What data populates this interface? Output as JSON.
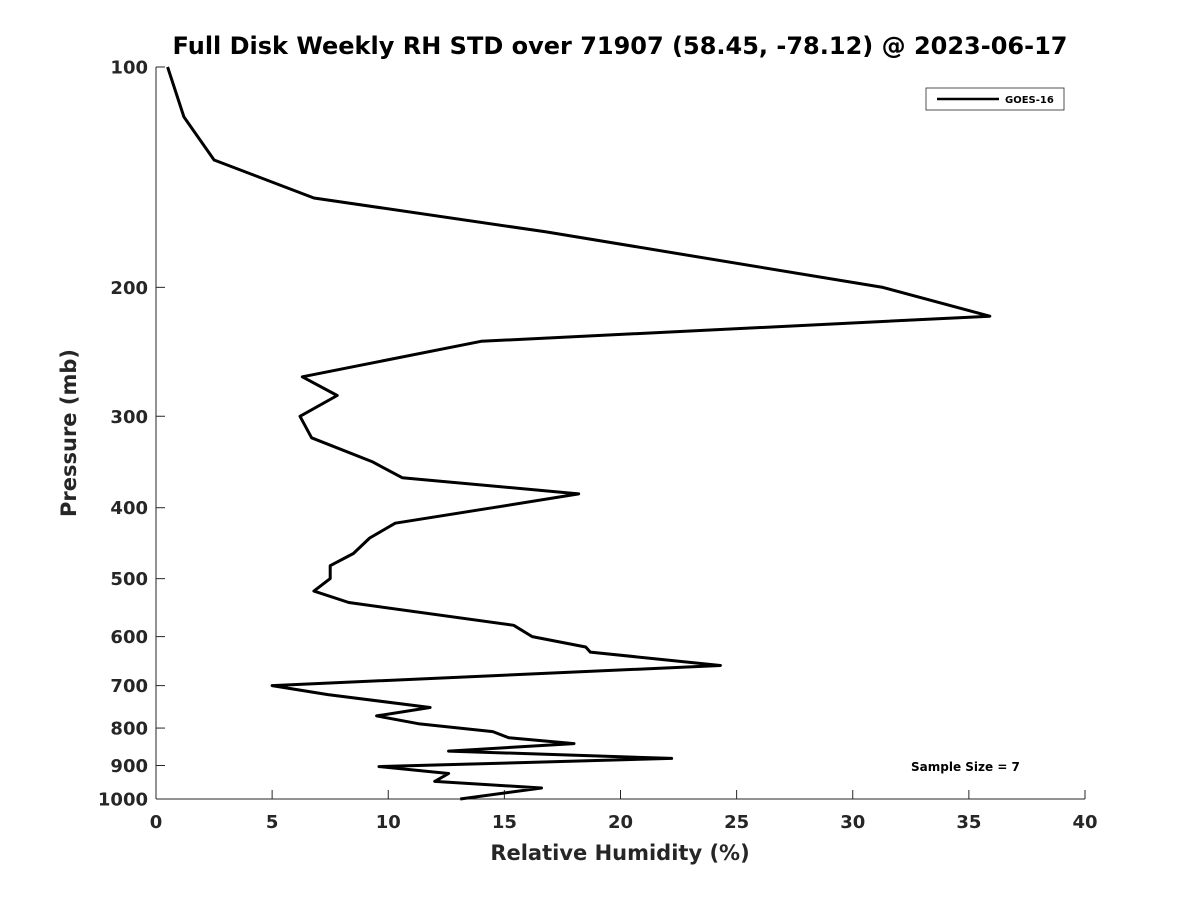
{
  "chart_data": {
    "type": "line",
    "title": "Full Disk Weekly RH STD over 71907 (58.45, -78.12) @ 2023-06-17",
    "xlabel": "Relative Humidity (%)",
    "ylabel": "Pressure (mb)",
    "xlim": [
      0,
      40
    ],
    "ylim": [
      100,
      1000
    ],
    "y_scale": "log",
    "y_reversed": true,
    "x_ticks": [
      0,
      5,
      10,
      15,
      20,
      25,
      30,
      35,
      40
    ],
    "y_ticks": [
      100,
      200,
      300,
      400,
      500,
      600,
      700,
      800,
      900,
      1000
    ],
    "grid": false,
    "legend": {
      "placement": "top-right",
      "entries": [
        "GOES-16"
      ]
    },
    "annotation": "Sample Size = 7",
    "series": [
      {
        "name": "GOES-16",
        "color": "#000000",
        "x": [
          0.5,
          1.2,
          2.5,
          6.8,
          16.8,
          31.3,
          35.9,
          14.0,
          6.3,
          7.8,
          6.2,
          6.7,
          9.3,
          10.6,
          18.2,
          14.5,
          10.3,
          9.2,
          8.5,
          7.5,
          7.5,
          6.8,
          8.3,
          15.4,
          16.2,
          18.5,
          18.7,
          24.3,
          5.0,
          7.4,
          11.8,
          9.5,
          11.3,
          14.5,
          15.2,
          18.0,
          12.6,
          22.2,
          9.6,
          12.6,
          12.0,
          16.6,
          13.1
        ],
        "y": [
          100,
          117,
          134,
          151,
          168,
          200,
          219,
          237,
          265,
          281,
          300,
          321,
          346,
          364,
          383,
          400,
          420,
          440,
          462,
          480,
          500,
          520,
          539,
          579,
          600,
          620,
          630,
          657,
          700,
          720,
          750,
          770,
          789,
          809,
          825,
          840,
          860,
          880,
          903,
          923,
          946,
          966,
          1000
        ]
      }
    ]
  }
}
